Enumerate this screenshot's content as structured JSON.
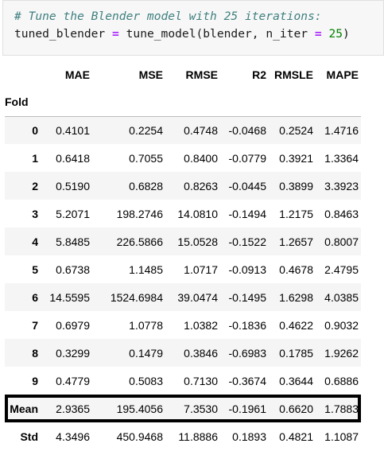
{
  "code": {
    "comment": "# Tune the Blender model with 25 iterations:",
    "line2_var": "tuned_blender",
    "line2_eq": "=",
    "line2_call": "tune_model(blender, n_iter",
    "line2_eq2": "=",
    "line2_num": "25",
    "line2_close": ")"
  },
  "table": {
    "columns": [
      "MAE",
      "MSE",
      "RMSE",
      "R2",
      "RMSLE",
      "MAPE"
    ],
    "index_label": "Fold",
    "rows": [
      {
        "label": "0",
        "values": [
          "0.4101",
          "0.2254",
          "0.4748",
          "-0.0468",
          "0.2524",
          "1.4716"
        ]
      },
      {
        "label": "1",
        "values": [
          "0.6418",
          "0.7055",
          "0.8400",
          "-0.0779",
          "0.3921",
          "1.3364"
        ]
      },
      {
        "label": "2",
        "values": [
          "0.5190",
          "0.6828",
          "0.8263",
          "-0.0445",
          "0.3899",
          "3.3923"
        ]
      },
      {
        "label": "3",
        "values": [
          "5.2071",
          "198.2746",
          "14.0810",
          "-0.1494",
          "1.2175",
          "0.8463"
        ]
      },
      {
        "label": "4",
        "values": [
          "5.8485",
          "226.5866",
          "15.0528",
          "-0.1522",
          "1.2657",
          "0.8007"
        ]
      },
      {
        "label": "5",
        "values": [
          "0.6738",
          "1.1485",
          "1.0717",
          "-0.0913",
          "0.4678",
          "2.4795"
        ]
      },
      {
        "label": "6",
        "values": [
          "14.5595",
          "1524.6984",
          "39.0474",
          "-0.1495",
          "1.6298",
          "4.0385"
        ]
      },
      {
        "label": "7",
        "values": [
          "0.6979",
          "1.0778",
          "1.0382",
          "-0.1836",
          "0.4622",
          "0.9032"
        ]
      },
      {
        "label": "8",
        "values": [
          "0.3299",
          "0.1479",
          "0.3846",
          "-0.6983",
          "0.1785",
          "1.9262"
        ]
      },
      {
        "label": "9",
        "values": [
          "0.4779",
          "0.5083",
          "0.7130",
          "-0.3674",
          "0.3644",
          "0.6886"
        ]
      },
      {
        "label": "Mean",
        "values": [
          "2.9365",
          "195.4056",
          "7.3530",
          "-0.1961",
          "0.6620",
          "1.7883"
        ]
      },
      {
        "label": "Std",
        "values": [
          "4.3496",
          "450.9468",
          "11.8886",
          "0.1893",
          "0.4821",
          "1.1087"
        ]
      }
    ]
  }
}
